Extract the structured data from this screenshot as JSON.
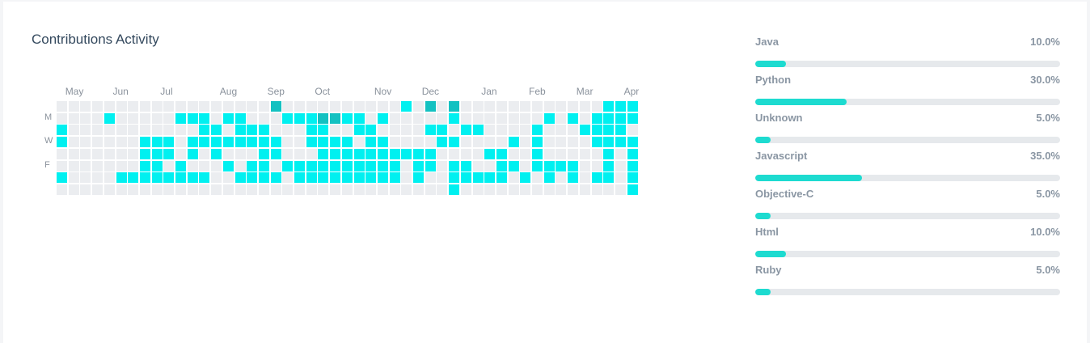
{
  "title": "Contributions Activity",
  "heatmap": {
    "months": [
      "May",
      "Jun",
      "Jul",
      "Aug",
      "Sep",
      "Oct",
      "Nov",
      "Dec",
      "Jan",
      "Feb",
      "Mar",
      "Apr"
    ],
    "month_week_index": [
      1,
      5,
      9,
      14,
      18,
      22,
      27,
      31,
      36,
      40,
      44,
      48
    ],
    "day_labels": [
      "M",
      "W",
      "F"
    ],
    "day_label_rows": [
      1,
      3,
      5
    ],
    "colors": {
      "empty": "#ebedf0",
      "active": "#00f0f0",
      "high": "#13c1c1"
    },
    "levels": [
      "0000000000000000002000000000010202000000000000111",
      "0000100000111011000111221101000001000000010101111",
      "1000003000001131110001100110000110110000100011113",
      "1000000111011111111001111011000011000010100001111",
      "0000000111010100011000111111111100001100100000101",
      "0000000110100010110111111111101101100110111100101",
      "1000011111111001111011111111101001111101010101101",
      "0000000000000000000000000000000001000000000000001"
    ]
  },
  "languages": [
    {
      "name": "Java",
      "percent_label": "10.0%",
      "percent": 10.0
    },
    {
      "name": "Python",
      "percent_label": "30.0%",
      "percent": 30.0
    },
    {
      "name": "Unknown",
      "percent_label": "5.0%",
      "percent": 5.0
    },
    {
      "name": "Javascript",
      "percent_label": "35.0%",
      "percent": 35.0
    },
    {
      "name": "Objective-C",
      "percent_label": "5.0%",
      "percent": 5.0
    },
    {
      "name": "Html",
      "percent_label": "10.0%",
      "percent": 10.0
    },
    {
      "name": "Ruby",
      "percent_label": "5.0%",
      "percent": 5.0
    }
  ]
}
